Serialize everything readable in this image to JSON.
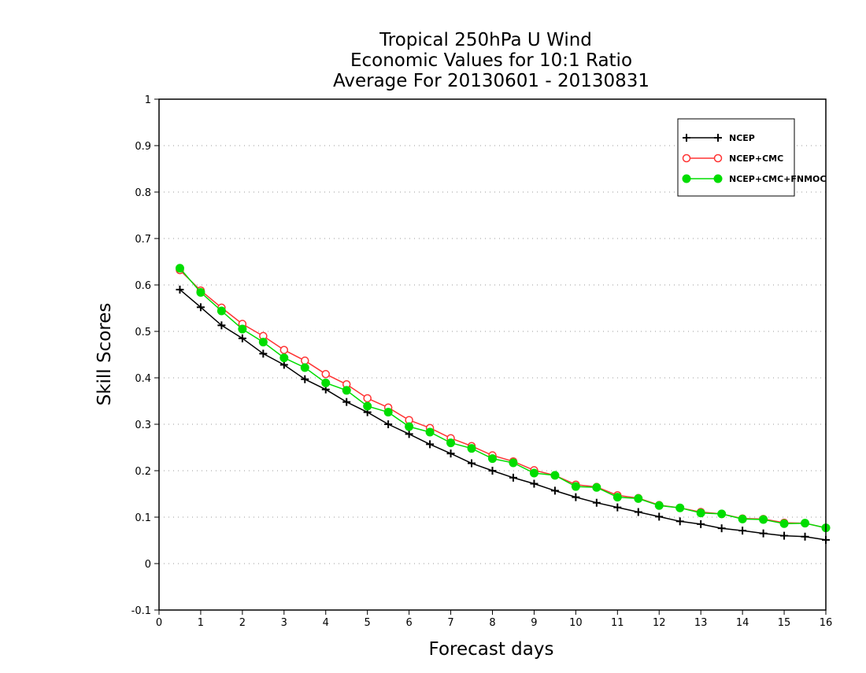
{
  "chart_data": {
    "type": "line",
    "title_lines": [
      "Tropical 250hPa U Wind",
      "Economic Values for 10:1 Ratio",
      "Average For 20130601 - 20130831"
    ],
    "xlabel": "Forecast days",
    "ylabel": "Skill Scores",
    "xlim": [
      0,
      16
    ],
    "ylim": [
      -0.1,
      1
    ],
    "x_ticks": [
      0,
      1,
      2,
      3,
      4,
      5,
      6,
      7,
      8,
      9,
      10,
      11,
      12,
      13,
      14,
      15,
      16
    ],
    "x_tick_labels": [
      "0",
      "1",
      "2",
      "3",
      "4",
      "5",
      "6",
      "7",
      "8",
      "9",
      "10",
      "11",
      "12",
      "13",
      "14",
      "15",
      "16"
    ],
    "y_ticks": [
      -0.1,
      0,
      0.1,
      0.2,
      0.3,
      0.4,
      0.5,
      0.6,
      0.7,
      0.8,
      0.9,
      1
    ],
    "y_tick_labels": [
      "-0.1",
      "0",
      "0.1",
      "0.2",
      "0.3",
      "0.4",
      "0.5",
      "0.6",
      "0.7",
      "0.8",
      "0.9",
      "1"
    ],
    "grid": true,
    "legend_position": "top-right",
    "x": [
      0.5,
      1,
      1.5,
      2,
      2.5,
      3,
      3.5,
      4,
      4.5,
      5,
      5.5,
      6,
      6.5,
      7,
      7.5,
      8,
      8.5,
      9,
      9.5,
      10,
      10.5,
      11,
      11.5,
      12,
      12.5,
      13,
      13.5,
      14,
      14.5,
      15,
      15.5,
      16
    ],
    "series": [
      {
        "name": "NCEP",
        "color": "#000000",
        "marker": "plus",
        "values": [
          0.59,
          0.552,
          0.513,
          0.485,
          0.452,
          0.428,
          0.397,
          0.375,
          0.348,
          0.326,
          0.3,
          0.279,
          0.257,
          0.237,
          0.216,
          0.2,
          0.185,
          0.172,
          0.157,
          0.143,
          0.131,
          0.121,
          0.111,
          0.101,
          0.091,
          0.085,
          0.076,
          0.071,
          0.065,
          0.06,
          0.058,
          0.051
        ]
      },
      {
        "name": "NCEP+CMC",
        "color": "#ff3333",
        "marker": "open-circle",
        "values": [
          0.632,
          0.588,
          0.551,
          0.516,
          0.49,
          0.46,
          0.437,
          0.408,
          0.386,
          0.356,
          0.336,
          0.309,
          0.292,
          0.27,
          0.253,
          0.233,
          0.22,
          0.201,
          0.19,
          0.17,
          0.165,
          0.147,
          0.141,
          0.126,
          0.12,
          0.111,
          0.107,
          0.097,
          0.096,
          0.088,
          0.087,
          0.077
        ]
      },
      {
        "name": "NCEP+CMC+FNMOC",
        "color": "#00dd00",
        "marker": "filled-circle",
        "values": [
          0.636,
          0.584,
          0.544,
          0.505,
          0.477,
          0.443,
          0.422,
          0.389,
          0.373,
          0.339,
          0.326,
          0.295,
          0.283,
          0.26,
          0.248,
          0.226,
          0.217,
          0.195,
          0.19,
          0.166,
          0.164,
          0.143,
          0.14,
          0.125,
          0.12,
          0.109,
          0.107,
          0.096,
          0.095,
          0.086,
          0.087,
          0.077
        ]
      }
    ]
  }
}
